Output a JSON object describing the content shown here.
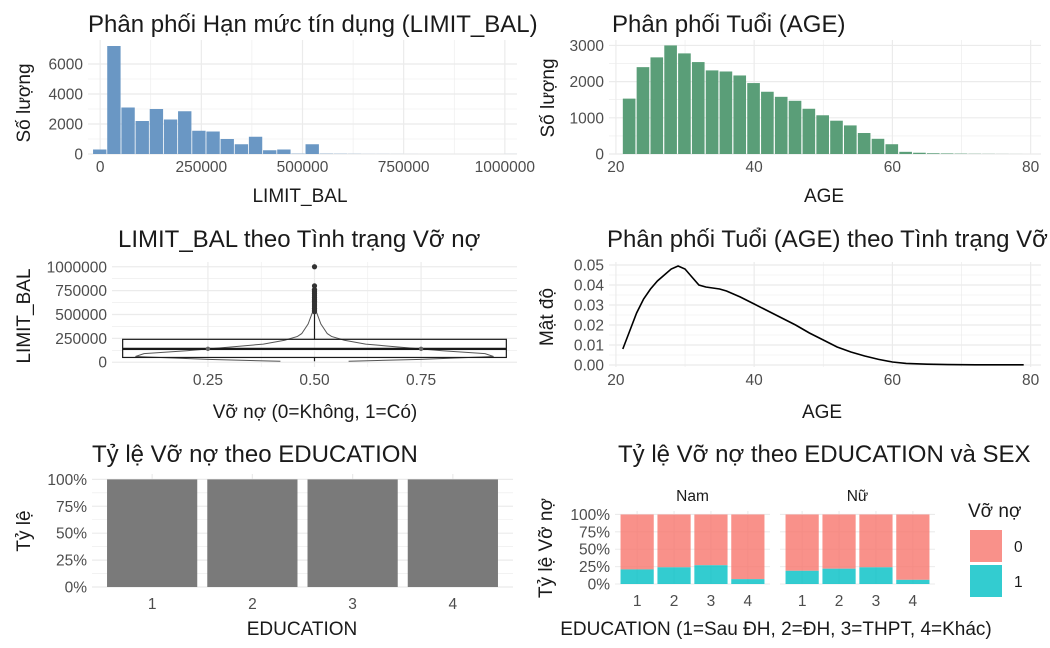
{
  "colors": {
    "limit_hist": "#6a97c4",
    "age_hist": "#5a9e78",
    "grid": "#ebebeb",
    "text": "#1a1a1a",
    "tick": "#4d4d4d",
    "box": "#1a1a1a",
    "default_bar": "#7a7a7a",
    "series_0": "#f8766d",
    "series_1": "#00bfc4"
  },
  "chart_data": [
    {
      "id": "limit-hist",
      "type": "bar",
      "title": "Phân phối Hạn mức tín dụng (LIMIT_BAL)",
      "xlabel": "LIMIT_BAL",
      "ylabel": "Số lượng",
      "xlim": [
        -30000,
        1030000
      ],
      "ylim": [
        0,
        7600
      ],
      "x_ticks": [
        0,
        250000,
        500000,
        750000,
        1000000
      ],
      "x_tick_labels": [
        "0",
        "250000",
        "500000",
        "750000",
        "1000000"
      ],
      "y_ticks": [
        0,
        2000,
        4000,
        6000
      ],
      "y_tick_labels": [
        "0",
        "2000",
        "4000",
        "6000"
      ],
      "bin_width": 35000,
      "bin_centers": [
        0,
        35000,
        70000,
        105000,
        140000,
        175000,
        210000,
        245000,
        280000,
        315000,
        350000,
        385000,
        420000,
        455000,
        490000,
        525000,
        560000,
        595000,
        630000,
        665000,
        700000,
        735000,
        770000,
        805000,
        840000,
        875000,
        910000,
        945000,
        980000,
        1015000
      ],
      "values": [
        300,
        7200,
        3100,
        2200,
        3000,
        2300,
        2850,
        1550,
        1500,
        1000,
        650,
        1150,
        250,
        300,
        20,
        650,
        20,
        15,
        10,
        5,
        5,
        3,
        2,
        0,
        0,
        0,
        0,
        0,
        0,
        3
      ]
    },
    {
      "id": "age-hist",
      "type": "bar",
      "title": "Phân phối Tuổi (AGE)",
      "xlabel": "AGE",
      "ylabel": "Số lượng",
      "xlim": [
        19,
        81.5
      ],
      "ylim": [
        0,
        3150
      ],
      "x_ticks": [
        20,
        40,
        60,
        80
      ],
      "x_tick_labels": [
        "20",
        "40",
        "60",
        "80"
      ],
      "y_ticks": [
        0,
        1000,
        2000,
        3000
      ],
      "y_tick_labels": [
        "0",
        "1000",
        "2000",
        "3000"
      ],
      "bin_width": 2,
      "bin_centers": [
        22,
        24,
        26,
        28,
        30,
        32,
        34,
        36,
        38,
        40,
        42,
        44,
        46,
        48,
        50,
        52,
        54,
        56,
        58,
        60,
        62,
        64,
        66,
        68,
        70,
        72,
        74,
        76,
        78
      ],
      "values": [
        1530,
        2400,
        2670,
        3000,
        2780,
        2540,
        2310,
        2280,
        2170,
        1960,
        1720,
        1580,
        1470,
        1250,
        1070,
        920,
        790,
        580,
        420,
        270,
        60,
        35,
        20,
        15,
        10,
        6,
        4,
        2,
        1
      ]
    },
    {
      "id": "limit-box",
      "type": "box",
      "title": "LIMIT_BAL theo Tình trạng Vỡ nợ",
      "xlabel": "Vỡ nợ (0=Không, 1=Có)",
      "ylabel": "LIMIT_BAL",
      "xlim": [
        0.025,
        0.975
      ],
      "ylim": [
        -50000,
        1050000
      ],
      "x_ticks": [
        0.25,
        0.5,
        0.75
      ],
      "x_tick_labels": [
        "0.25",
        "0.50",
        "0.75"
      ],
      "y_ticks": [
        0,
        250000,
        500000,
        750000,
        1000000
      ],
      "y_tick_labels": [
        "0",
        "250000",
        "500000",
        "750000",
        "1000000"
      ],
      "box": {
        "x": 0.5,
        "half_width": 0.45,
        "min": 10000,
        "q1": 50000,
        "median": 140000,
        "q3": 240000,
        "max": 525000
      },
      "outliers": [
        530000,
        560000,
        600000,
        640000,
        680000,
        720000,
        760000,
        800000,
        1000000
      ]
    },
    {
      "id": "age-density",
      "type": "line",
      "title": "Phân phối Tuổi (AGE) theo Tình trạng Vỡ nợ",
      "xlabel": "AGE",
      "ylabel": "Mật độ",
      "xlim": [
        19,
        81.5
      ],
      "ylim": [
        -0.001,
        0.0515
      ],
      "x_ticks": [
        20,
        40,
        60,
        80
      ],
      "x_tick_labels": [
        "20",
        "40",
        "60",
        "80"
      ],
      "y_ticks": [
        0,
        0.01,
        0.02,
        0.03,
        0.04,
        0.05
      ],
      "y_tick_labels": [
        "0.00",
        "0.01",
        "0.02",
        "0.03",
        "0.04",
        "0.05"
      ],
      "x": [
        21,
        22,
        23,
        24,
        25,
        26,
        27,
        28,
        29,
        30,
        31,
        32,
        33,
        34,
        35,
        36,
        37,
        38,
        40,
        42,
        44,
        46,
        48,
        50,
        52,
        54,
        56,
        58,
        60,
        62,
        65,
        68,
        72,
        76,
        79
      ],
      "values": [
        0.008,
        0.017,
        0.026,
        0.033,
        0.038,
        0.042,
        0.045,
        0.048,
        0.0495,
        0.048,
        0.044,
        0.04,
        0.039,
        0.0385,
        0.038,
        0.037,
        0.0355,
        0.034,
        0.0305,
        0.027,
        0.0235,
        0.02,
        0.016,
        0.0125,
        0.009,
        0.0065,
        0.0045,
        0.0028,
        0.0015,
        0.0008,
        0.0004,
        0.0002,
        0.0001,
        0.0001,
        0.0001
      ]
    },
    {
      "id": "edu-default",
      "type": "bar",
      "title": "Tỷ lệ Vỡ nợ theo EDUCATION",
      "xlabel": "EDUCATION",
      "ylabel": "Tỷ lệ",
      "categories": [
        "1",
        "2",
        "3",
        "4"
      ],
      "values": [
        1,
        1,
        1,
        1
      ],
      "ylim": [
        0,
        1.05
      ],
      "y_ticks": [
        0,
        0.25,
        0.5,
        0.75,
        1
      ],
      "y_tick_labels": [
        "0%",
        "25%",
        "50%",
        "75%",
        "100%"
      ]
    },
    {
      "id": "edu-sex-default",
      "type": "bar",
      "stacked": true,
      "title": "Tỷ lệ Vỡ nợ theo EDUCATION và SEX",
      "xlabel": "EDUCATION (1=Sau ĐH, 2=ĐH, 3=THPT, 4=Khác)",
      "ylabel": "Tỷ lệ Vỡ nợ",
      "categories": [
        "1",
        "2",
        "3",
        "4"
      ],
      "ylim": [
        0,
        1.05
      ],
      "y_ticks": [
        0,
        0.25,
        0.5,
        0.75,
        1
      ],
      "y_tick_labels": [
        "0%",
        "25%",
        "50%",
        "75%",
        "100%"
      ],
      "facets": [
        {
          "label": "Nam",
          "series_1": [
            0.21,
            0.24,
            0.27,
            0.07
          ]
        },
        {
          "label": "Nữ",
          "series_1": [
            0.19,
            0.22,
            0.24,
            0.06
          ]
        }
      ],
      "legend_title": "Vỡ nợ",
      "legend_position": "right",
      "legend": [
        {
          "name": "0",
          "color": "#f8766d"
        },
        {
          "name": "1",
          "color": "#00bfc4"
        }
      ]
    }
  ]
}
